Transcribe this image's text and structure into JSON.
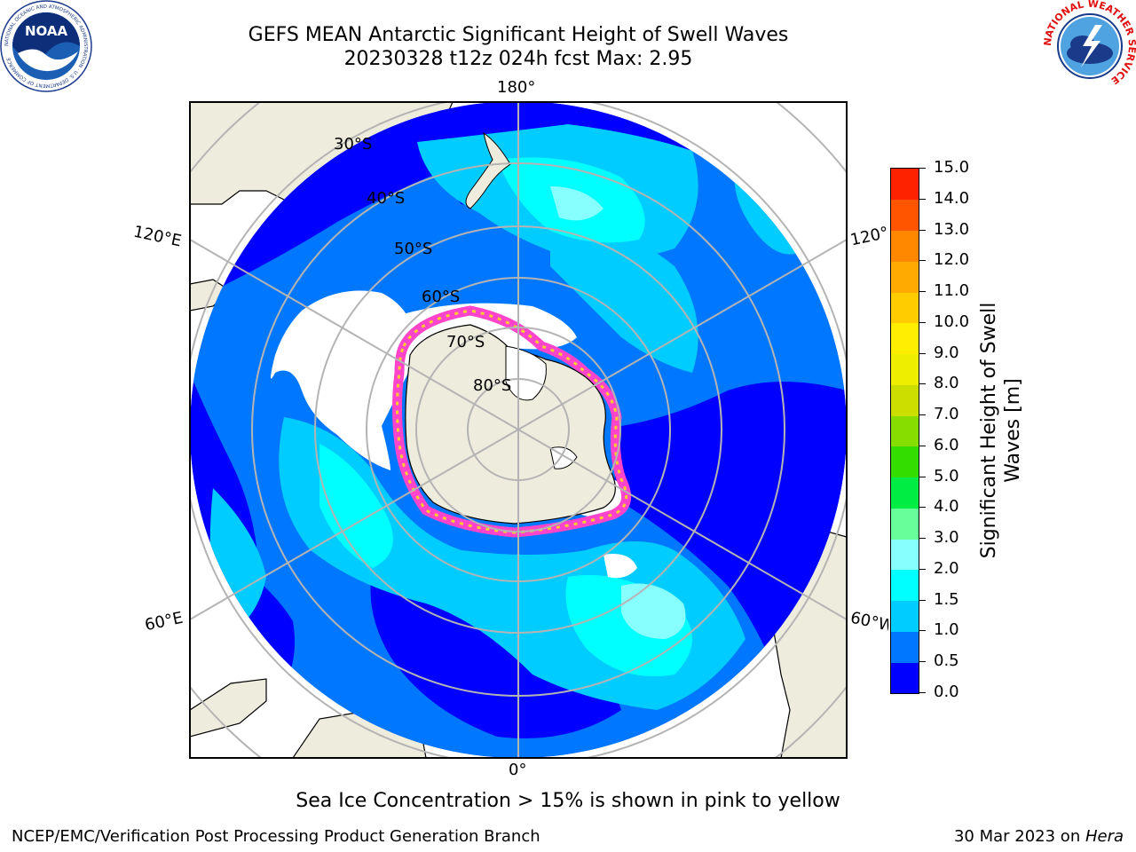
{
  "header": {
    "title_line1": "GEFS MEAN Antarctic Significant Height of Swell Waves",
    "title_line2": "20230328 t12z 024h fcst   Max: 2.95"
  },
  "logos": {
    "noaa_text": "NOAA",
    "noaa_ring": "NATIONAL OCEANIC AND ATMOSPHERIC ADMINISTRATION · U.S. DEPARTMENT OF COMMERCE",
    "nws_ring": "NATIONAL WEATHER SERVICE"
  },
  "map": {
    "projection": "south-polar-stereographic",
    "meridian_labels": {
      "top": "180°",
      "bottom": "0°",
      "upper_left": "120°E",
      "upper_right": "120°W",
      "lower_left": "60°E",
      "lower_right": "60°W"
    },
    "parallel_labels": [
      "30°S",
      "40°S",
      "50°S",
      "60°S",
      "70°S",
      "80°S"
    ],
    "colors": {
      "land": "#eeecdc",
      "ice_free_white": "#ffffff",
      "ice_edge": [
        "#ff44cc",
        "#ffcc33"
      ],
      "graticule": "#b4b4b4"
    }
  },
  "colorbar": {
    "label_line1": "Significant Height of Swell",
    "label_line2": "Waves [m]",
    "ticks": [
      "0.0",
      "0.5",
      "1.0",
      "1.5",
      "2.0",
      "3.0",
      "4.0",
      "5.0",
      "6.0",
      "7.0",
      "8.0",
      "9.0",
      "10.0",
      "11.0",
      "12.0",
      "13.0",
      "14.0",
      "15.0"
    ],
    "colors": [
      "#0000ff",
      "#0077ff",
      "#00ccff",
      "#00ffff",
      "#88ffff",
      "#66ff99",
      "#00ee44",
      "#33dd00",
      "#88dd00",
      "#ccdd00",
      "#eeee00",
      "#ffee00",
      "#ffcc00",
      "#ffaa00",
      "#ff8800",
      "#ff5500",
      "#ff2200"
    ]
  },
  "note": "Sea Ice Concentration > 15% is shown in pink to yellow",
  "footer": {
    "left": "NCEP/EMC/Verification Post Processing Product Generation Branch",
    "date": "30 Mar 2023 on ",
    "host": "Hera"
  }
}
